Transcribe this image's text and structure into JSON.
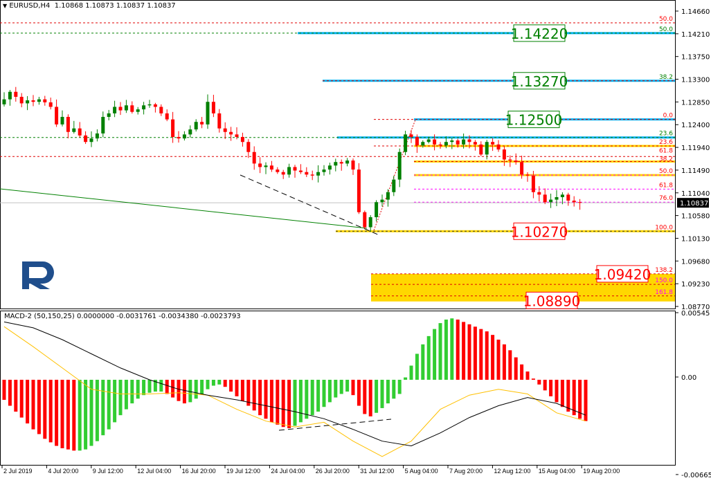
{
  "header": {
    "symbol": "EURUSD,H4",
    "ohlc": "1.10868 1.10873 1.10837 1.10837",
    "dropdown_icon": "triangle-down-icon"
  },
  "macd_header": {
    "label": "MACD-2 (50,150,25) 0.0000000 -0.0031761 -0.0034380 -0.0023793"
  },
  "colors": {
    "bull": "#008000",
    "bear": "#ff0000",
    "blue_level": "#00b0f0",
    "gold": "#ffd700",
    "magenta": "#ff00ff",
    "signal": "#ffc000",
    "macd_main": "#000000",
    "trend": "#008000",
    "current_price_bg": "#000000",
    "logo": "#1f4e8c"
  },
  "chart_data": [
    {
      "type": "candlestick",
      "symbol": "EURUSD",
      "timeframe": "H4",
      "ylim": [
        1.0877,
        1.1466
      ],
      "y_ticks": [
        "1.14660",
        "1.14210",
        "1.13750",
        "1.13300",
        "1.12850",
        "1.12400",
        "1.11940",
        "1.11490",
        "1.11040",
        "1.10580",
        "1.10130",
        "1.09680",
        "1.09230",
        "1.08770"
      ],
      "x_ticks": [
        "2 Jul 2019",
        "4 Jul 20:00",
        "9 Jul 12:00",
        "12 Jul 04:00",
        "16 Jul 20:00",
        "19 Jul 12:00",
        "24 Jul 04:00",
        "26 Jul 20:00",
        "31 Jul 12:00",
        "5 Aug 04:00",
        "7 Aug 20:00",
        "12 Aug 12:00",
        "15 Aug 04:00",
        "19 Aug 20:00"
      ],
      "current_price": "1.10837",
      "closes": [
        1.128,
        1.129,
        1.1305,
        1.1295,
        1.1282,
        1.1288,
        1.1285,
        1.129,
        1.1284,
        1.1275,
        1.124,
        1.1255,
        1.1225,
        1.1232,
        1.1218,
        1.1205,
        1.1212,
        1.1222,
        1.1255,
        1.1262,
        1.1275,
        1.1268,
        1.1278,
        1.1265,
        1.127,
        1.1278,
        1.128,
        1.1275,
        1.1262,
        1.125,
        1.1215,
        1.1212,
        1.122,
        1.123,
        1.1245,
        1.124,
        1.1285,
        1.1262,
        1.1232,
        1.1225,
        1.122,
        1.1215,
        1.1205,
        1.1185,
        1.1162,
        1.1155,
        1.1158,
        1.115,
        1.1145,
        1.114,
        1.1155,
        1.1148,
        1.1145,
        1.114,
        1.1138,
        1.1145,
        1.115,
        1.1158,
        1.1165,
        1.1162,
        1.1168,
        1.115,
        1.1065,
        1.1035,
        1.1055,
        1.1085,
        1.109,
        1.1105,
        1.113,
        1.1185,
        1.122,
        1.1215,
        1.1198,
        1.1205,
        1.121,
        1.12,
        1.1198,
        1.1205,
        1.1208,
        1.12,
        1.121,
        1.1205,
        1.12,
        1.118,
        1.1205,
        1.12,
        1.119,
        1.117,
        1.1168,
        1.1165,
        1.114,
        1.1138,
        1.1105,
        1.11,
        1.1085,
        1.109,
        1.1095,
        1.11,
        1.1088,
        1.1085,
        1.10837
      ],
      "price_labels": [
        {
          "text": "1.14220",
          "price": 1.1422,
          "color": "#008000"
        },
        {
          "text": "1.13270",
          "price": 1.1327,
          "color": "#008000"
        },
        {
          "text": "1.12500",
          "price": 1.125,
          "color": "#008000"
        },
        {
          "text": "1.10270",
          "price": 1.1027,
          "color": "#ff0000"
        },
        {
          "text": "1.09420",
          "price": 1.0942,
          "color": "#ff0000"
        },
        {
          "text": "1.08890",
          "price": 1.0889,
          "color": "#ff0000"
        }
      ],
      "fib_levels": [
        {
          "label": "50.0",
          "price": 1.14426,
          "color": "#ff0000"
        },
        {
          "label": "50.0",
          "price": 1.1422,
          "color": "#008000"
        },
        {
          "label": "38.2",
          "price": 1.1327,
          "color": "#008000"
        },
        {
          "label": "0.0",
          "price": 1.125,
          "color": "#ff0000"
        },
        {
          "label": "23.6",
          "price": 1.1214,
          "color": "#008000"
        },
        {
          "label": "23.6",
          "price": 1.1197,
          "color": "#ff0000"
        },
        {
          "label": "61.8",
          "price": 1.1176,
          "color": "#ff0000"
        },
        {
          "label": "38.2",
          "price": 1.1166,
          "color": "#ff0000"
        },
        {
          "label": "50.0",
          "price": 1.1139,
          "color": "#ff0000"
        },
        {
          "label": "61.8",
          "price": 1.1111,
          "color": "#ff0000"
        },
        {
          "label": "76.0",
          "price": 1.1085,
          "color": "#ff0000"
        },
        {
          "label": "100.0",
          "price": 1.1027,
          "color": "#ff0000"
        },
        {
          "label": "138.2",
          "price": 1.0942,
          "color": "#ff0000"
        },
        {
          "label": "150.0",
          "price": 1.0921,
          "color": "#ff00ff"
        },
        {
          "label": "161.8",
          "price": 1.0898,
          "color": "#ff00ff"
        }
      ],
      "target_zone": [
        1.0887,
        1.0942
      ]
    },
    {
      "type": "macd",
      "params": "50,150,25",
      "y_ticks": [
        "0.00545",
        "0.00",
        "-0.00665"
      ],
      "histogram": [
        -0.0017,
        -0.0022,
        -0.0027,
        -0.0032,
        -0.0037,
        -0.0042,
        -0.0046,
        -0.005,
        -0.0053,
        -0.0056,
        -0.0058,
        -0.0059,
        -0.006,
        -0.006,
        -0.0059,
        -0.0056,
        -0.0052,
        -0.0047,
        -0.0042,
        -0.0036,
        -0.003,
        -0.0025,
        -0.002,
        -0.0016,
        -0.0013,
        -0.0011,
        -0.001,
        -0.001,
        -0.0012,
        -0.0015,
        -0.0018,
        -0.002,
        -0.0019,
        -0.0016,
        -0.0012,
        -0.0008,
        -0.0005,
        -0.0004,
        -0.0006,
        -0.001,
        -0.0014,
        -0.0018,
        -0.0022,
        -0.0026,
        -0.003,
        -0.0033,
        -0.0036,
        -0.0038,
        -0.004,
        -0.0041,
        -0.0039,
        -0.0036,
        -0.0033,
        -0.003,
        -0.0027,
        -0.0023,
        -0.0019,
        -0.0015,
        -0.0012,
        -0.001,
        -0.0013,
        -0.0022,
        -0.0029,
        -0.0031,
        -0.0028,
        -0.0024,
        -0.002,
        -0.0016,
        -0.0012,
        0.0002,
        0.0012,
        0.0022,
        0.003,
        0.0037,
        0.0043,
        0.0048,
        0.0051,
        0.0052,
        0.0051,
        0.0049,
        0.0047,
        0.0045,
        0.0043,
        0.0041,
        0.0038,
        0.0034,
        0.003,
        0.0025,
        0.0019,
        0.0013,
        0.0007,
        0.0001,
        -0.0004,
        -0.0009,
        -0.0014,
        -0.0019,
        -0.0023,
        -0.0027,
        -0.003,
        -0.0033,
        -0.0035
      ],
      "main_sampled_every_5_bars": [
        0.0049,
        0.0044,
        0.0034,
        0.0022,
        0.001,
        0.0,
        -0.0008,
        -0.0013,
        -0.0017,
        -0.0022,
        -0.0027,
        -0.0033,
        -0.0042,
        -0.0052,
        -0.0056,
        -0.0045,
        -0.0032,
        -0.0022,
        -0.0015,
        -0.002,
        -0.003
      ],
      "signal_sampled_every_5_bars": [
        0.0045,
        0.0028,
        0.001,
        -0.0008,
        -0.0012,
        -0.0012,
        -0.0011,
        -0.0013,
        -0.0025,
        -0.0035,
        -0.004,
        -0.0036,
        -0.0052,
        -0.0065,
        -0.0052,
        -0.0025,
        -0.0013,
        -0.0008,
        -0.0012,
        -0.0028,
        -0.0035
      ]
    }
  ]
}
